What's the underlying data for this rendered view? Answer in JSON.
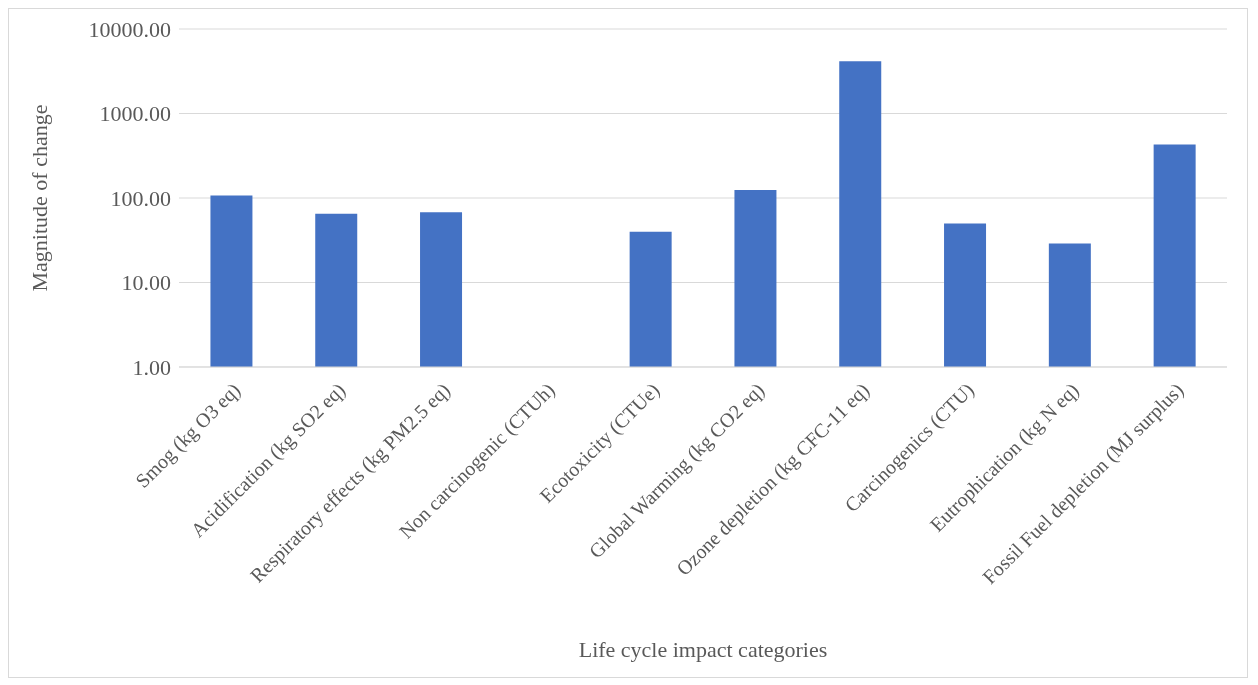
{
  "chart_data": {
    "type": "bar",
    "xlabel": "Life cycle impact categories",
    "ylabel": "Magnitude of change",
    "categories": [
      "Smog (kg O3 eq)",
      "Acidification (kg SO2 eq)",
      "Respiratory effects (kg PM2.5 eq)",
      "Non carcinogenic (CTUh)",
      "Ecotoxicity (CTUe)",
      "Global Warming (kg CO2 eq)",
      "Ozone depletion (kg CFC-11 eq)",
      "Carcinogenics (CTU)",
      "Eutrophication (kg N eq)",
      "Fossil Fuel depletion (MJ surplus)"
    ],
    "values": [
      107,
      65,
      68,
      null,
      40,
      124,
      4150,
      50,
      29,
      430
    ],
    "color": "#4472c4",
    "log": "y",
    "ylim": [
      1,
      10000
    ],
    "yticks": [
      {
        "value": 1,
        "label": "1.00"
      },
      {
        "value": 10,
        "label": "10.00"
      },
      {
        "value": 100,
        "label": "100.00"
      },
      {
        "value": 1000,
        "label": "1000.00"
      },
      {
        "value": 10000,
        "label": "10000.00"
      }
    ],
    "grid": "y",
    "legend": false
  }
}
